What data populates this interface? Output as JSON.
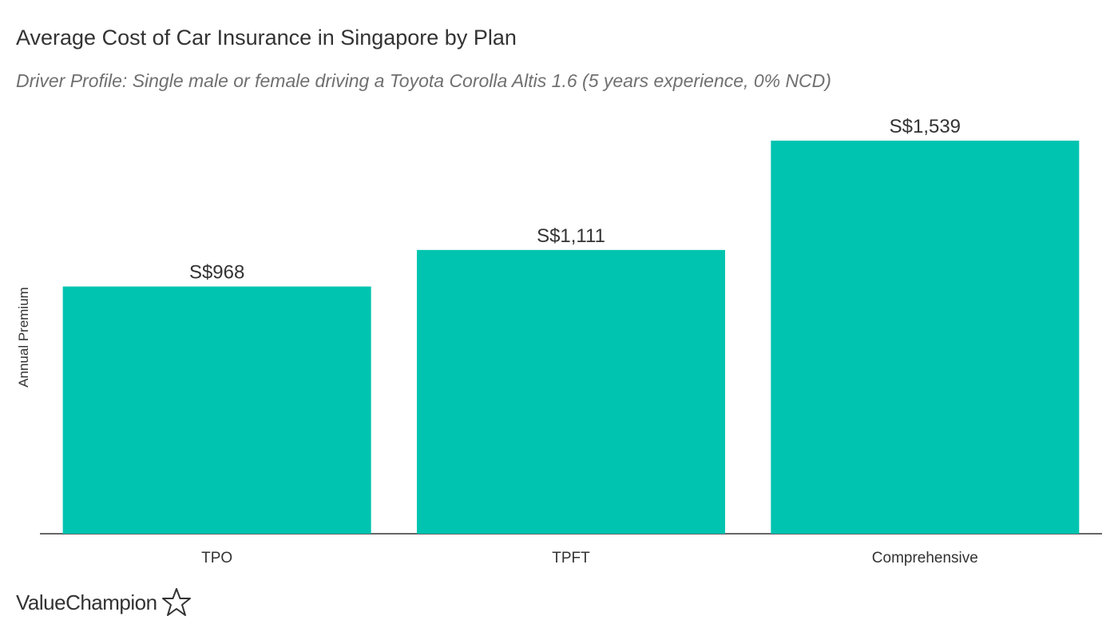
{
  "chart_data": {
    "type": "bar",
    "title": "Average Cost of Car Insurance in Singapore by Plan",
    "subtitle": "Driver Profile: Single male or female driving a Toyota Corolla Altis 1.6 (5 years experience, 0% NCD)",
    "xlabel": "",
    "ylabel": "Annual Premium",
    "categories": [
      "TPO",
      "TPFT",
      "Comprehensive"
    ],
    "values": [
      968,
      1111,
      1539
    ],
    "data_labels": [
      "S$968",
      "S$1,111",
      "S$1,539"
    ],
    "ylim": [
      0,
      1600
    ],
    "grid": false,
    "legend": "none",
    "bar_color": "#00c4b0",
    "axis_color": "#333333"
  },
  "brand": {
    "name": "ValueChampion",
    "logo_icon": "star-outline-icon"
  }
}
